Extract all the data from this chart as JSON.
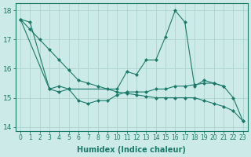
{
  "xlabel": "Humidex (Indice chaleur)",
  "background_color": "#cceae7",
  "grid_color": "#aed4d0",
  "line_color": "#1a7a6a",
  "ylim": [
    13.85,
    18.25
  ],
  "yticks": [
    14,
    15,
    16,
    17,
    18
  ],
  "xticks": [
    0,
    1,
    2,
    3,
    4,
    5,
    6,
    7,
    8,
    9,
    10,
    11,
    12,
    13,
    14,
    15,
    16,
    17,
    18,
    19,
    20,
    21,
    22,
    23
  ],
  "series_long": {
    "x": [
      0,
      1,
      2,
      3,
      4,
      5,
      6,
      7,
      8,
      9,
      10,
      11,
      12,
      13,
      14,
      15,
      16,
      17,
      18,
      19,
      20,
      21,
      22,
      23
    ],
    "y": [
      17.7,
      17.35,
      17.0,
      16.65,
      16.3,
      15.95,
      15.6,
      15.5,
      15.4,
      15.3,
      15.2,
      15.15,
      15.1,
      15.05,
      15.0,
      15.0,
      15.0,
      15.0,
      15.0,
      14.9,
      14.8,
      14.7,
      14.55,
      14.2
    ]
  },
  "series_upper": {
    "x": [
      0,
      1,
      3,
      4,
      5,
      10,
      11,
      12,
      13,
      14,
      15,
      16,
      17,
      18,
      19,
      20,
      21,
      22,
      23
    ],
    "y": [
      17.7,
      17.6,
      15.3,
      15.4,
      15.3,
      15.3,
      15.9,
      15.8,
      16.3,
      16.3,
      17.1,
      18.0,
      17.6,
      15.4,
      15.6,
      15.5,
      15.4,
      15.0,
      14.2
    ]
  },
  "series_lower": {
    "x": [
      0,
      3,
      4,
      5,
      6,
      7,
      8,
      9,
      10,
      11,
      12,
      13,
      14,
      15,
      16,
      17,
      18,
      19,
      20,
      21
    ],
    "y": [
      17.7,
      15.3,
      15.2,
      15.3,
      14.9,
      14.8,
      14.9,
      14.9,
      15.1,
      15.2,
      15.2,
      15.2,
      15.3,
      15.3,
      15.4,
      15.4,
      15.45,
      15.5,
      15.5,
      15.4
    ]
  }
}
